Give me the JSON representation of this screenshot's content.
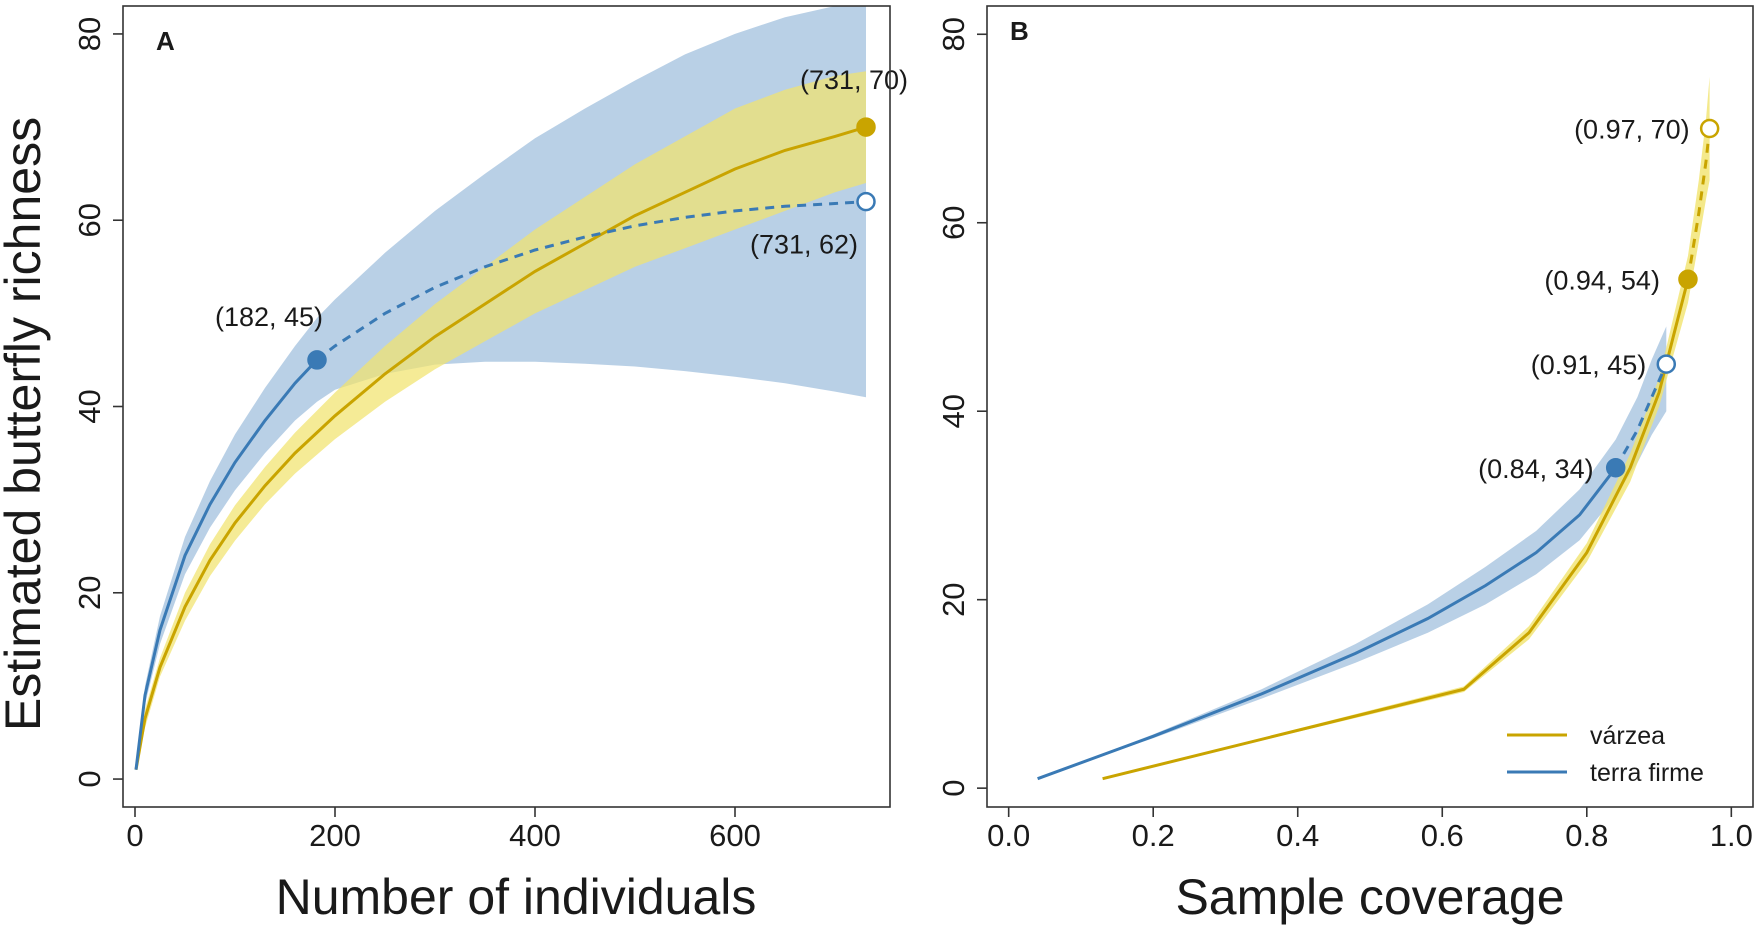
{
  "colors": {
    "varzea": "#c9a400",
    "varzea_band": "#f1e36e",
    "terra_firme": "#3a7ab5",
    "terra_firme_band": "#7fa9d1"
  },
  "chart_data": [
    {
      "type": "line",
      "panel": "A",
      "title": "",
      "xlabel": "Number of individuals",
      "ylabel": "Estimated butterfly richness",
      "xlim": [
        -12,
        755
      ],
      "ylim": [
        -3,
        83
      ],
      "xticks": [
        "0",
        "200",
        "400",
        "600"
      ],
      "yticks": [
        "0",
        "20",
        "40",
        "60",
        "80"
      ],
      "series": [
        {
          "name": "várzea",
          "color_key": "varzea",
          "x": [
            1,
            10,
            25,
            50,
            75,
            100,
            130,
            160,
            200,
            250,
            300,
            350,
            400,
            450,
            500,
            550,
            600,
            650,
            700,
            731
          ],
          "y": [
            1,
            6.5,
            12,
            18.5,
            23.5,
            27.5,
            31.5,
            35,
            39,
            43.5,
            47.5,
            51,
            54.5,
            57.5,
            60.5,
            63,
            65.5,
            67.5,
            69,
            70
          ],
          "lower": [
            1,
            5.5,
            11,
            17,
            21.8,
            25.6,
            29.5,
            32.8,
            36.5,
            40.5,
            44,
            47,
            50,
            52.5,
            55,
            57,
            59,
            61,
            63,
            64
          ],
          "upper": [
            1,
            7.5,
            13,
            20,
            25.2,
            29.4,
            33.5,
            37.2,
            41.5,
            46.5,
            51,
            55,
            59,
            62.5,
            66,
            69,
            72,
            74,
            75.5,
            76
          ],
          "observed_n": 731,
          "markers": [
            {
              "x": 731,
              "y": 70,
              "filled": true,
              "label": "(731, 70)"
            }
          ]
        },
        {
          "name": "terra firme",
          "color_key": "terra_firme",
          "x": [
            1,
            10,
            25,
            50,
            75,
            100,
            130,
            160,
            182,
            200,
            250,
            300,
            350,
            400,
            450,
            500,
            550,
            600,
            650,
            700,
            731
          ],
          "y": [
            1,
            9,
            16,
            24,
            29.5,
            34,
            38.5,
            42.5,
            45,
            46.5,
            50,
            52.8,
            55,
            56.8,
            58.2,
            59.4,
            60.3,
            61,
            61.5,
            61.8,
            62
          ],
          "lower": [
            1,
            8,
            14.5,
            22,
            27,
            31,
            35,
            38.5,
            40.5,
            41.8,
            43.5,
            44.5,
            44.8,
            44.8,
            44.6,
            44.3,
            43.8,
            43.2,
            42.5,
            41.6,
            41
          ],
          "upper": [
            1,
            10,
            17.5,
            26,
            32,
            37,
            42,
            46.5,
            49.5,
            51.5,
            56.5,
            61,
            65,
            68.8,
            72,
            75,
            77.8,
            80,
            81.8,
            83,
            83.5
          ],
          "observed_n": 182,
          "markers": [
            {
              "x": 182,
              "y": 45,
              "filled": true,
              "label": "(182, 45)"
            },
            {
              "x": 731,
              "y": 62,
              "filled": false,
              "label": "(731, 62)"
            }
          ]
        }
      ]
    },
    {
      "type": "line",
      "panel": "B",
      "title": "",
      "xlabel": "Sample coverage",
      "ylabel": "",
      "xlim": [
        -0.03,
        1.03
      ],
      "ylim": [
        -2,
        83
      ],
      "xticks": [
        "0.0",
        "0.2",
        "0.4",
        "0.6",
        "0.8",
        "1.0"
      ],
      "yticks": [
        "0",
        "20",
        "40",
        "60",
        "80"
      ],
      "legend": {
        "position": "bottom-right",
        "entries": [
          {
            "label": "várzea",
            "color_key": "varzea"
          },
          {
            "label": "terra firme",
            "color_key": "terra_firme"
          }
        ]
      },
      "series": [
        {
          "name": "várzea",
          "color_key": "varzea",
          "x": [
            0.13,
            0.63,
            0.72,
            0.8,
            0.86,
            0.9,
            0.92,
            0.94,
            0.955,
            0.965,
            0.97
          ],
          "y": [
            1,
            10.5,
            16.5,
            25,
            34,
            42,
            48,
            54,
            61,
            66.5,
            70
          ],
          "lower": [
            1,
            10.2,
            15.8,
            24,
            32.5,
            40.5,
            46,
            51.5,
            58,
            62.5,
            64.5
          ],
          "upper": [
            1,
            10.8,
            17.2,
            26,
            35.5,
            43.5,
            50,
            56.5,
            64.5,
            71,
            75.5
          ],
          "observed_x": 0.94,
          "markers": [
            {
              "x": 0.94,
              "y": 54,
              "filled": true,
              "label": "(0.94, 54)"
            },
            {
              "x": 0.97,
              "y": 70,
              "filled": false,
              "label": "(0.97, 70)"
            }
          ]
        },
        {
          "name": "terra firme",
          "color_key": "terra_firme",
          "x": [
            0.04,
            0.2,
            0.35,
            0.48,
            0.58,
            0.66,
            0.73,
            0.79,
            0.84,
            0.87,
            0.89,
            0.91
          ],
          "y": [
            1,
            5.5,
            10,
            14.3,
            18,
            21.5,
            25,
            29,
            34,
            38,
            41.5,
            45
          ],
          "lower": [
            1,
            5.3,
            9.5,
            13.3,
            16.5,
            19.5,
            22.7,
            26.3,
            31,
            34.5,
            37.5,
            40
          ],
          "upper": [
            1,
            5.7,
            10.5,
            15.3,
            19.5,
            23.5,
            27.3,
            31.7,
            37,
            41.5,
            45.5,
            49
          ],
          "observed_x": 0.84,
          "markers": [
            {
              "x": 0.84,
              "y": 34,
              "filled": true,
              "label": "(0.84, 34)"
            },
            {
              "x": 0.91,
              "y": 45,
              "filled": false,
              "label": "(0.91, 45)"
            }
          ]
        }
      ]
    }
  ]
}
